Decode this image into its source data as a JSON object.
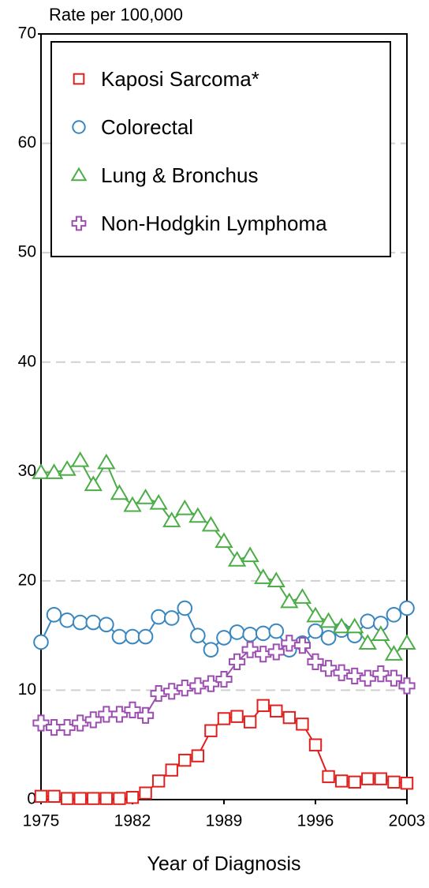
{
  "chart_data": {
    "type": "line",
    "y_label": "Rate per 100,000",
    "x_label": "Year of Diagnosis",
    "x": [
      1975,
      1976,
      1977,
      1978,
      1979,
      1980,
      1981,
      1982,
      1983,
      1984,
      1985,
      1986,
      1987,
      1988,
      1989,
      1990,
      1991,
      1992,
      1993,
      1994,
      1995,
      1996,
      1997,
      1998,
      1999,
      2000,
      2001,
      2002,
      2003
    ],
    "series": [
      {
        "name": "Kaposi Sarcoma*",
        "color": "#e0201e",
        "marker": "square",
        "values": [
          0.3,
          0.3,
          0.1,
          0.1,
          0.1,
          0.1,
          0.1,
          0.2,
          0.6,
          1.7,
          2.7,
          3.6,
          4.0,
          6.3,
          7.4,
          7.6,
          7.1,
          8.6,
          8.1,
          7.5,
          6.9,
          5.0,
          2.1,
          1.7,
          1.6,
          1.9,
          1.9,
          1.6,
          1.5
        ]
      },
      {
        "name": "Colorectal",
        "color": "#3a87c0",
        "marker": "circle",
        "values": [
          14.4,
          16.9,
          16.4,
          16.2,
          16.2,
          16.0,
          14.9,
          14.9,
          14.9,
          16.7,
          16.6,
          17.5,
          15.0,
          13.7,
          14.8,
          15.3,
          15.1,
          15.2,
          15.4,
          13.7,
          14.3,
          15.4,
          14.8,
          15.5,
          15.0,
          16.3,
          16.1,
          16.9,
          17.5
        ]
      },
      {
        "name": "Lung & Bronchus",
        "color": "#4cad48",
        "marker": "triangle",
        "values": [
          29.9,
          29.9,
          30.2,
          31.0,
          28.8,
          30.8,
          28.0,
          26.9,
          27.6,
          27.1,
          25.5,
          26.6,
          25.9,
          25.1,
          23.6,
          21.9,
          22.3,
          20.3,
          20.0,
          18.1,
          18.5,
          16.8,
          16.3,
          15.8,
          15.8,
          14.3,
          15.1,
          13.3,
          14.3
        ]
      },
      {
        "name": "Non-Hodgkin Lymphoma",
        "color": "#9c4fb0",
        "marker": "plus",
        "values": [
          7.0,
          6.6,
          6.6,
          7.0,
          7.3,
          7.8,
          7.8,
          8.2,
          7.7,
          9.7,
          9.9,
          10.2,
          10.4,
          10.6,
          11.0,
          12.6,
          13.7,
          13.3,
          13.5,
          14.3,
          14.1,
          12.6,
          12.0,
          11.6,
          11.3,
          11.1,
          11.5,
          11.1,
          10.4
        ]
      }
    ],
    "xlim": [
      1975,
      2003
    ],
    "xticks": [
      1975,
      1982,
      1989,
      1996,
      2003
    ],
    "ylim": [
      0,
      70
    ],
    "yticks": [
      0,
      10,
      20,
      30,
      40,
      50,
      60,
      70
    ],
    "grid": true,
    "legend": "upper left"
  }
}
